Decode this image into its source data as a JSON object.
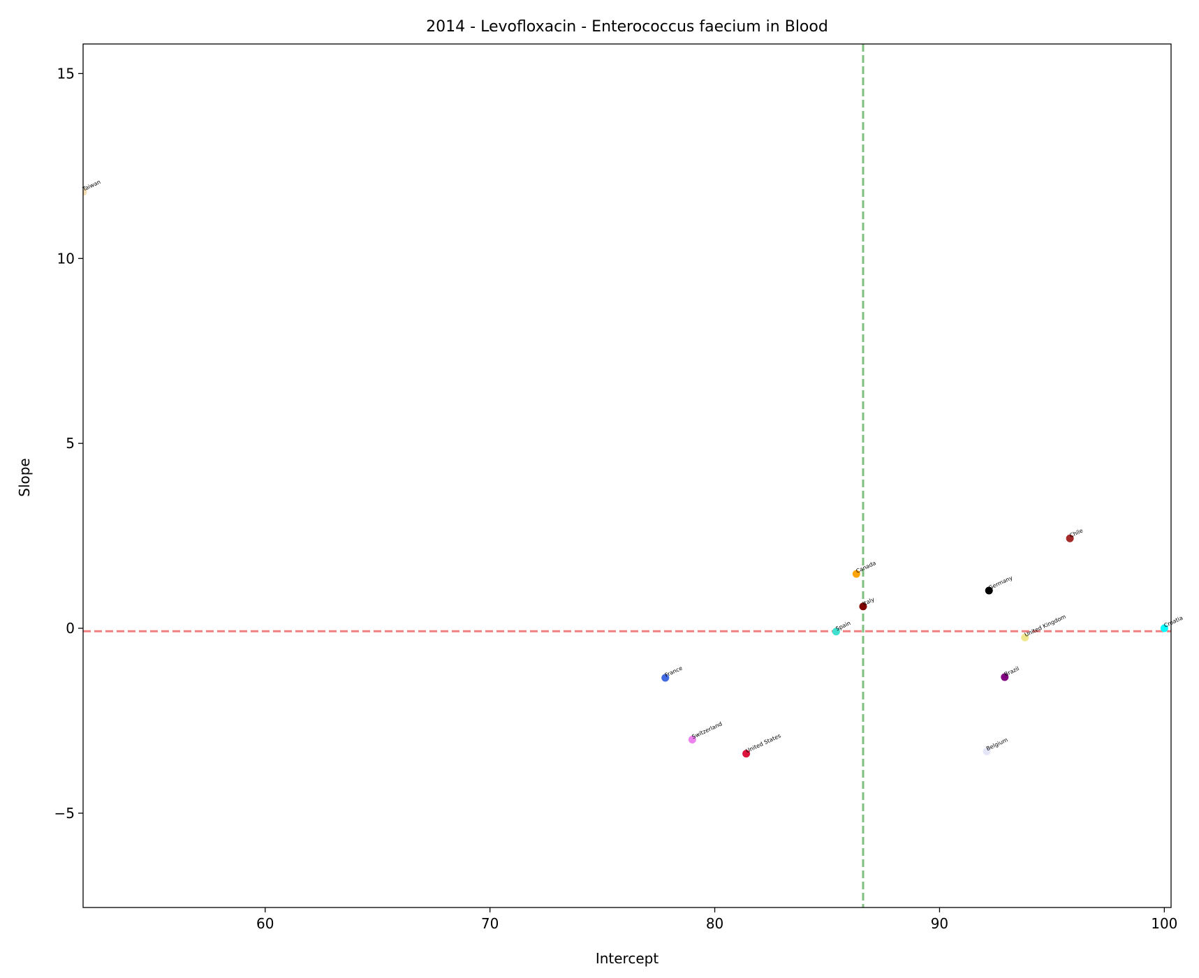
{
  "chart_data": {
    "type": "scatter",
    "title": "2014 - Levofloxacin - Enterococcus faecium in Blood",
    "xlabel": "Intercept",
    "ylabel": "Slope",
    "xlim": [
      51.9,
      100.3
    ],
    "ylim": [
      -7.55,
      15.8
    ],
    "xticks": [
      60,
      70,
      80,
      90,
      100
    ],
    "yticks": [
      -5,
      0,
      5,
      10,
      15
    ],
    "xtick_labels": [
      "60",
      "70",
      "80",
      "90",
      "100"
    ],
    "ytick_labels": [
      "−5",
      "0",
      "5",
      "10",
      "15"
    ],
    "grid": false,
    "reference_lines": {
      "vertical": {
        "x": 86.6,
        "color": "#7fbf7f",
        "style": "dashed"
      },
      "horizontal": {
        "y": -0.08,
        "color": "#f08080",
        "style": "dashed"
      }
    },
    "points": [
      {
        "label": "Taiwan",
        "x": 51.9,
        "y": 11.8,
        "color": "#f5deb3"
      },
      {
        "label": "Chile",
        "x": 95.8,
        "y": 2.43,
        "color": "#a52a2a"
      },
      {
        "label": "Canada",
        "x": 86.3,
        "y": 1.47,
        "color": "#ffa500"
      },
      {
        "label": "Germany",
        "x": 92.2,
        "y": 1.02,
        "color": "#000000"
      },
      {
        "label": "Italy",
        "x": 86.6,
        "y": 0.59,
        "color": "#800000"
      },
      {
        "label": "Spain",
        "x": 85.4,
        "y": -0.09,
        "color": "#40e0d0"
      },
      {
        "label": "Croatia",
        "x": 100.0,
        "y": 0.0,
        "color": "#00ffff"
      },
      {
        "label": "United Kingdom",
        "x": 93.8,
        "y": -0.25,
        "color": "#f0e68c"
      },
      {
        "label": "France",
        "x": 77.8,
        "y": -1.34,
        "color": "#4169e1"
      },
      {
        "label": "Brazil",
        "x": 92.9,
        "y": -1.32,
        "color": "#800080"
      },
      {
        "label": "Switzerland",
        "x": 79.0,
        "y": -3.01,
        "color": "#ee82ee"
      },
      {
        "label": "United States",
        "x": 81.4,
        "y": -3.39,
        "color": "#dc143c"
      },
      {
        "label": "Belgium",
        "x": 92.1,
        "y": -3.33,
        "color": "#e6e6fa"
      }
    ]
  }
}
